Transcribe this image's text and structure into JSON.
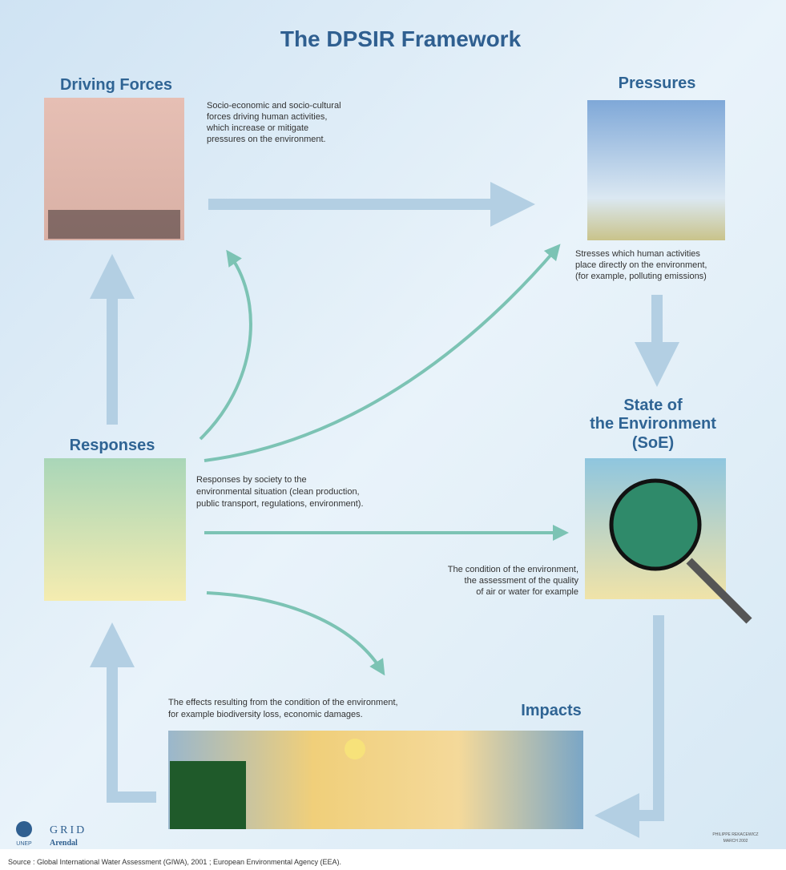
{
  "title": "The DPSIR Framework",
  "nodes": [
    {
      "label": [
        "Driving Forces"
      ],
      "description": [
        "Socio-economic and socio-cultural",
        "forces driving human activities,",
        "which increase or mitigate",
        "pressures on the environment."
      ]
    },
    {
      "label": [
        "Pressures"
      ],
      "description": [
        "Stresses which human activities",
        "place directly on the environment,",
        "(for example, polluting emissions)"
      ]
    },
    {
      "label": [
        "State of",
        "the Environment",
        "(SoE)"
      ],
      "description": [
        "The condition of the environment,",
        "the assessment of the quality",
        "of air or water for example"
      ]
    },
    {
      "label": [
        "Impacts"
      ],
      "description": [
        "The effects resulting from the condition of the environment,",
        "for example biodiversity loss, economic damages."
      ]
    },
    {
      "label": [
        "Responses"
      ],
      "description": [
        "Responses by society to the",
        "environmental situation (clean production,",
        "public transport, regulations, environment)."
      ]
    }
  ],
  "logo": {
    "unep": "UNEP",
    "grid": "GRID",
    "arendal": "Arendal"
  },
  "credit": [
    "PHILIPPE REKACEWICZ",
    "MARCH 2002"
  ],
  "source": "Source : Global International Water Assessment (GIWA), 2001 ; European Environmental Agency (EEA)."
}
